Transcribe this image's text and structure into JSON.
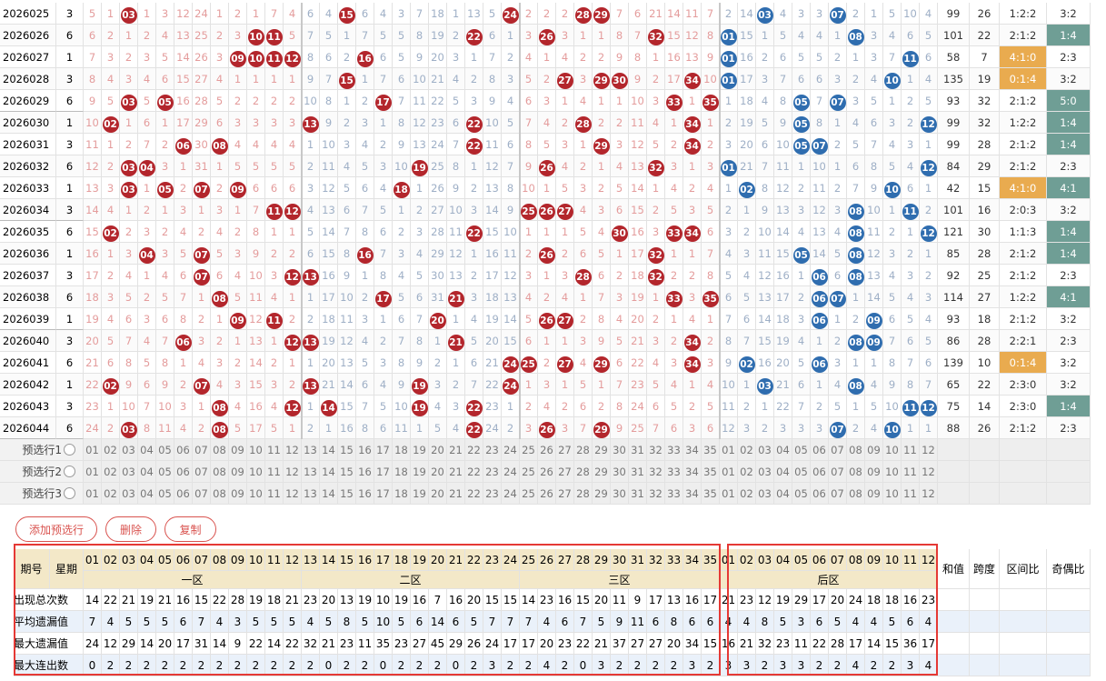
{
  "colors": {
    "front_ball": "#b3262c",
    "back_ball": "#2f6daf",
    "zone_ratio_mark": "#e9ab4f",
    "odd_even_mark": "#6f9e95"
  },
  "rows": [
    {
      "period": "2026025",
      "week": 3,
      "front": [
        5,
        1,
        "03",
        1,
        3,
        12,
        24,
        1,
        2,
        1,
        7,
        4,
        6,
        4,
        "15",
        6,
        4,
        3,
        7,
        18,
        1,
        13,
        5,
        "24",
        2,
        2,
        2,
        "28",
        "29",
        7,
        6,
        21,
        14,
        11,
        7
      ],
      "back": [
        2,
        14,
        "03",
        4,
        3,
        3,
        "07",
        2,
        1,
        5,
        10,
        4
      ],
      "sum": 99,
      "span": 26,
      "zone_ratio": "1:2:2",
      "odd_even": "3:2",
      "zone_ratio_marked": false,
      "odd_even_marked": false
    },
    {
      "period": "2026026",
      "week": 6,
      "front": [
        6,
        2,
        1,
        2,
        4,
        13,
        25,
        2,
        3,
        "10",
        "11",
        5,
        7,
        5,
        1,
        7,
        5,
        5,
        8,
        19,
        2,
        "22",
        6,
        1,
        3,
        "26",
        3,
        1,
        1,
        8,
        7,
        "32",
        15,
        12,
        8
      ],
      "back": [
        "01",
        15,
        1,
        5,
        4,
        4,
        1,
        "08",
        3,
        4,
        6,
        5
      ],
      "sum": 101,
      "span": 22,
      "zone_ratio": "2:1:2",
      "odd_even": "1:4",
      "zone_ratio_marked": false,
      "odd_even_marked": true
    },
    {
      "period": "2026027",
      "week": 1,
      "front": [
        7,
        3,
        2,
        3,
        5,
        14,
        26,
        3,
        "09",
        "10",
        "11",
        "12",
        8,
        6,
        2,
        "16",
        6,
        5,
        9,
        20,
        3,
        1,
        7,
        2,
        4,
        1,
        4,
        2,
        2,
        9,
        8,
        1,
        16,
        13,
        9
      ],
      "back": [
        "01",
        16,
        2,
        6,
        5,
        5,
        2,
        1,
        3,
        7,
        "11",
        6
      ],
      "sum": 58,
      "span": 7,
      "zone_ratio": "4:1:0",
      "odd_even": "2:3",
      "zone_ratio_marked": true,
      "odd_even_marked": false
    },
    {
      "period": "2026028",
      "week": 3,
      "front": [
        8,
        4,
        3,
        4,
        6,
        15,
        27,
        4,
        1,
        1,
        1,
        1,
        9,
        7,
        "15",
        1,
        7,
        6,
        10,
        21,
        4,
        2,
        8,
        3,
        5,
        2,
        "27",
        3,
        "29",
        "30",
        9,
        2,
        17,
        "34",
        10
      ],
      "back": [
        "01",
        17,
        3,
        7,
        6,
        6,
        3,
        2,
        4,
        "10",
        1,
        4
      ],
      "sum": 135,
      "span": 19,
      "zone_ratio": "0:1:4",
      "odd_even": "3:2",
      "zone_ratio_marked": true,
      "odd_even_marked": false
    },
    {
      "period": "2026029",
      "week": 6,
      "front": [
        9,
        5,
        "03",
        5,
        "05",
        16,
        28,
        5,
        2,
        2,
        2,
        2,
        10,
        8,
        1,
        2,
        "17",
        7,
        11,
        22,
        5,
        3,
        9,
        4,
        6,
        3,
        1,
        4,
        1,
        1,
        10,
        3,
        "33",
        1,
        "35"
      ],
      "back": [
        1,
        18,
        4,
        8,
        "05",
        7,
        "07",
        3,
        5,
        1,
        2,
        5
      ],
      "sum": 93,
      "span": 32,
      "zone_ratio": "2:1:2",
      "odd_even": "5:0",
      "zone_ratio_marked": false,
      "odd_even_marked": true
    },
    {
      "period": "2026030",
      "week": 1,
      "front": [
        10,
        "02",
        1,
        6,
        1,
        17,
        29,
        6,
        3,
        3,
        3,
        3,
        "13",
        9,
        2,
        3,
        1,
        8,
        12,
        23,
        6,
        "22",
        10,
        5,
        7,
        4,
        2,
        "28",
        2,
        2,
        11,
        4,
        1,
        "34",
        1
      ],
      "back": [
        2,
        19,
        5,
        9,
        "05",
        8,
        1,
        4,
        6,
        3,
        2,
        "12"
      ],
      "sum": 99,
      "span": 32,
      "zone_ratio": "1:2:2",
      "odd_even": "1:4",
      "zone_ratio_marked": false,
      "odd_even_marked": true
    },
    {
      "period": "2026031",
      "week": 3,
      "front": [
        11,
        1,
        2,
        7,
        2,
        "06",
        30,
        "08",
        4,
        4,
        4,
        4,
        1,
        10,
        3,
        4,
        2,
        9,
        13,
        24,
        7,
        "22",
        11,
        6,
        8,
        5,
        3,
        1,
        "29",
        3,
        12,
        5,
        2,
        "34",
        2
      ],
      "back": [
        3,
        20,
        6,
        10,
        "05",
        "07",
        2,
        5,
        7,
        4,
        3,
        1
      ],
      "sum": 99,
      "span": 28,
      "zone_ratio": "2:1:2",
      "odd_even": "1:4",
      "zone_ratio_marked": false,
      "odd_even_marked": true
    },
    {
      "period": "2026032",
      "week": 6,
      "front": [
        12,
        2,
        "03",
        "04",
        3,
        1,
        31,
        1,
        5,
        5,
        5,
        5,
        2,
        11,
        4,
        5,
        3,
        10,
        "19",
        25,
        8,
        1,
        12,
        7,
        9,
        "26",
        4,
        2,
        1,
        4,
        13,
        "32",
        3,
        1,
        3
      ],
      "back": [
        "01",
        21,
        7,
        11,
        1,
        10,
        1,
        6,
        8,
        5,
        4,
        "12"
      ],
      "sum": 84,
      "span": 29,
      "zone_ratio": "2:1:2",
      "odd_even": "2:3",
      "zone_ratio_marked": false,
      "odd_even_marked": false
    },
    {
      "period": "2026033",
      "week": 1,
      "front": [
        13,
        3,
        "03",
        1,
        "05",
        2,
        "07",
        2,
        "09",
        6,
        6,
        6,
        3,
        12,
        5,
        6,
        4,
        "18",
        1,
        26,
        9,
        2,
        13,
        8,
        10,
        1,
        5,
        3,
        2,
        5,
        14,
        1,
        4,
        2,
        4
      ],
      "back": [
        1,
        "02",
        8,
        12,
        2,
        11,
        2,
        7,
        9,
        "10",
        6,
        1
      ],
      "sum": 42,
      "span": 15,
      "zone_ratio": "4:1:0",
      "odd_even": "4:1",
      "zone_ratio_marked": true,
      "odd_even_marked": true
    },
    {
      "period": "2026034",
      "week": 3,
      "front": [
        14,
        4,
        1,
        2,
        1,
        3,
        1,
        3,
        1,
        7,
        "11",
        "12",
        4,
        13,
        6,
        7,
        5,
        1,
        2,
        27,
        10,
        3,
        14,
        9,
        "25",
        "26",
        "27",
        4,
        3,
        6,
        15,
        2,
        5,
        3,
        5
      ],
      "back": [
        2,
        1,
        9,
        13,
        3,
        12,
        3,
        "08",
        10,
        1,
        "11",
        2
      ],
      "sum": 101,
      "span": 16,
      "zone_ratio": "2:0:3",
      "odd_even": "3:2",
      "zone_ratio_marked": false,
      "odd_even_marked": false
    },
    {
      "period": "2026035",
      "week": 6,
      "front": [
        15,
        "02",
        2,
        3,
        2,
        4,
        2,
        4,
        2,
        8,
        1,
        1,
        5,
        14,
        7,
        8,
        6,
        2,
        3,
        28,
        11,
        "22",
        15,
        10,
        1,
        1,
        1,
        5,
        4,
        "30",
        16,
        3,
        "33",
        "34",
        6
      ],
      "back": [
        3,
        2,
        10,
        14,
        4,
        13,
        4,
        "08",
        11,
        2,
        1,
        "12"
      ],
      "sum": 121,
      "span": 30,
      "zone_ratio": "1:1:3",
      "odd_even": "1:4",
      "zone_ratio_marked": false,
      "odd_even_marked": true
    },
    {
      "period": "2026036",
      "week": 1,
      "front": [
        16,
        1,
        3,
        "04",
        3,
        5,
        "07",
        5,
        3,
        9,
        2,
        2,
        6,
        15,
        8,
        "16",
        7,
        3,
        4,
        29,
        12,
        1,
        16,
        11,
        2,
        "26",
        2,
        6,
        5,
        1,
        17,
        "32",
        1,
        1,
        7
      ],
      "back": [
        4,
        3,
        11,
        15,
        "05",
        14,
        5,
        "08",
        12,
        3,
        2,
        1
      ],
      "sum": 85,
      "span": 28,
      "zone_ratio": "2:1:2",
      "odd_even": "1:4",
      "zone_ratio_marked": false,
      "odd_even_marked": true
    },
    {
      "period": "2026037",
      "week": 3,
      "front": [
        17,
        2,
        4,
        1,
        4,
        6,
        "07",
        6,
        4,
        10,
        3,
        "12",
        "13",
        16,
        9,
        1,
        8,
        4,
        5,
        30,
        13,
        2,
        17,
        12,
        3,
        1,
        3,
        "28",
        6,
        2,
        18,
        "32",
        2,
        2,
        8
      ],
      "back": [
        5,
        4,
        12,
        16,
        1,
        "06",
        6,
        "08",
        13,
        4,
        3,
        2
      ],
      "sum": 92,
      "span": 25,
      "zone_ratio": "2:1:2",
      "odd_even": "2:3",
      "zone_ratio_marked": false,
      "odd_even_marked": false
    },
    {
      "period": "2026038",
      "week": 6,
      "front": [
        18,
        3,
        5,
        2,
        5,
        7,
        1,
        "08",
        5,
        11,
        4,
        1,
        1,
        17,
        10,
        2,
        "17",
        5,
        6,
        31,
        "21",
        3,
        18,
        13,
        4,
        2,
        4,
        1,
        7,
        3,
        19,
        1,
        "33",
        3,
        "35"
      ],
      "back": [
        6,
        5,
        13,
        17,
        2,
        "06",
        "07",
        1,
        14,
        5,
        4,
        3
      ],
      "sum": 114,
      "span": 27,
      "zone_ratio": "1:2:2",
      "odd_even": "4:1",
      "zone_ratio_marked": false,
      "odd_even_marked": true
    },
    {
      "period": "2026039",
      "week": 1,
      "front": [
        19,
        4,
        6,
        3,
        6,
        8,
        2,
        1,
        "09",
        12,
        "11",
        2,
        2,
        18,
        11,
        3,
        1,
        6,
        7,
        "20",
        1,
        4,
        19,
        14,
        5,
        "26",
        "27",
        2,
        8,
        4,
        20,
        2,
        1,
        4,
        1
      ],
      "back": [
        7,
        6,
        14,
        18,
        3,
        "06",
        1,
        2,
        "09",
        6,
        5,
        4
      ],
      "sum": 93,
      "span": 18,
      "zone_ratio": "2:1:2",
      "odd_even": "3:2",
      "zone_ratio_marked": false,
      "odd_even_marked": false
    },
    {
      "period": "2026040",
      "week": 3,
      "front": [
        20,
        5,
        7,
        4,
        7,
        "06",
        3,
        2,
        1,
        13,
        1,
        "12",
        "13",
        19,
        12,
        4,
        2,
        7,
        8,
        1,
        "21",
        5,
        20,
        15,
        6,
        1,
        1,
        3,
        9,
        5,
        21,
        3,
        2,
        "34",
        2
      ],
      "back": [
        8,
        7,
        15,
        19,
        4,
        1,
        2,
        "08",
        "09",
        7,
        6,
        5
      ],
      "sum": 86,
      "span": 28,
      "zone_ratio": "2:2:1",
      "odd_even": "2:3",
      "zone_ratio_marked": false,
      "odd_even_marked": false
    },
    {
      "period": "2026041",
      "week": 6,
      "front": [
        21,
        6,
        8,
        5,
        8,
        1,
        4,
        3,
        2,
        14,
        2,
        1,
        1,
        20,
        13,
        5,
        3,
        8,
        9,
        2,
        1,
        6,
        21,
        "24",
        "25",
        2,
        "27",
        4,
        "29",
        6,
        22,
        4,
        3,
        "34",
        3
      ],
      "back": [
        9,
        "02",
        16,
        20,
        5,
        "06",
        3,
        1,
        1,
        8,
        7,
        6
      ],
      "sum": 139,
      "span": 10,
      "zone_ratio": "0:1:4",
      "odd_even": "3:2",
      "zone_ratio_marked": true,
      "odd_even_marked": false
    },
    {
      "period": "2026042",
      "week": 1,
      "front": [
        22,
        "02",
        9,
        6,
        9,
        2,
        "07",
        4,
        3,
        15,
        3,
        2,
        "13",
        21,
        14,
        6,
        4,
        9,
        "19",
        3,
        2,
        7,
        22,
        "24",
        1,
        3,
        1,
        5,
        1,
        7,
        23,
        5,
        4,
        1,
        4
      ],
      "back": [
        10,
        1,
        "03",
        21,
        6,
        1,
        4,
        "08",
        4,
        9,
        8,
        7
      ],
      "sum": 65,
      "span": 22,
      "zone_ratio": "2:3:0",
      "odd_even": "3:2",
      "zone_ratio_marked": false,
      "odd_even_marked": false
    },
    {
      "period": "2026043",
      "week": 3,
      "front": [
        23,
        1,
        10,
        7,
        10,
        3,
        1,
        "08",
        4,
        16,
        4,
        "12",
        1,
        "14",
        15,
        7,
        5,
        10,
        "19",
        4,
        3,
        "22",
        23,
        1,
        2,
        4,
        2,
        6,
        2,
        8,
        24,
        6,
        5,
        2,
        5
      ],
      "back": [
        11,
        2,
        1,
        22,
        7,
        2,
        5,
        1,
        5,
        10,
        "11",
        "12"
      ],
      "sum": 75,
      "span": 14,
      "zone_ratio": "2:3:0",
      "odd_even": "1:4",
      "zone_ratio_marked": false,
      "odd_even_marked": true
    },
    {
      "period": "2026044",
      "week": 6,
      "front": [
        24,
        2,
        "03",
        8,
        11,
        4,
        2,
        "08",
        5,
        17,
        5,
        1,
        2,
        1,
        16,
        8,
        6,
        11,
        1,
        5,
        4,
        "22",
        24,
        2,
        3,
        "26",
        3,
        7,
        "29",
        9,
        25,
        7,
        6,
        3,
        6
      ],
      "back": [
        12,
        3,
        2,
        3,
        3,
        3,
        "07",
        2,
        4,
        "10",
        1,
        1
      ],
      "sum": 88,
      "span": 26,
      "zone_ratio": "2:1:2",
      "odd_even": "2:3",
      "zone_ratio_marked": false,
      "odd_even_marked": false
    }
  ],
  "preselect": [
    "预选行1",
    "预选行2",
    "预选行3"
  ],
  "buttons": [
    "添加预选行",
    "删除",
    "复制"
  ],
  "header": {
    "period": "期号",
    "week": "星期",
    "front_numbers": [
      "01",
      "02",
      "03",
      "04",
      "05",
      "06",
      "07",
      "08",
      "09",
      "10",
      "11",
      "12",
      "13",
      "14",
      "15",
      "16",
      "17",
      "18",
      "19",
      "20",
      "21",
      "22",
      "23",
      "24",
      "25",
      "26",
      "27",
      "28",
      "29",
      "30",
      "31",
      "32",
      "33",
      "34",
      "35"
    ],
    "back_numbers": [
      "01",
      "02",
      "03",
      "04",
      "05",
      "06",
      "07",
      "08",
      "09",
      "10",
      "11",
      "12"
    ],
    "zones": [
      "一区",
      "二区",
      "三区"
    ],
    "back_zone": "后区",
    "sum": "和值",
    "span": "跨度",
    "zone_ratio": "区间比",
    "odd_even": "奇偶比"
  },
  "stats": [
    {
      "label": "出现总次数",
      "front": [
        14,
        22,
        21,
        19,
        21,
        16,
        15,
        22,
        28,
        19,
        18,
        21,
        23,
        20,
        13,
        19,
        10,
        19,
        16,
        7,
        16,
        20,
        15,
        15,
        14,
        23,
        16,
        15,
        20,
        11,
        9,
        17,
        13,
        16,
        17
      ],
      "back": [
        21,
        23,
        12,
        19,
        29,
        17,
        20,
        24,
        18,
        18,
        16,
        23
      ]
    },
    {
      "label": "平均遗漏值",
      "front": [
        7,
        4,
        5,
        5,
        5,
        6,
        7,
        4,
        3,
        5,
        5,
        5,
        4,
        5,
        8,
        5,
        10,
        5,
        6,
        14,
        6,
        5,
        7,
        7,
        7,
        4,
        6,
        7,
        5,
        9,
        11,
        6,
        8,
        6,
        6
      ],
      "back": [
        4,
        4,
        8,
        5,
        3,
        6,
        5,
        4,
        4,
        5,
        6,
        4
      ]
    },
    {
      "label": "最大遗漏值",
      "front": [
        24,
        12,
        29,
        14,
        20,
        17,
        31,
        14,
        9,
        22,
        14,
        22,
        32,
        21,
        23,
        11,
        35,
        23,
        27,
        45,
        29,
        26,
        24,
        17,
        17,
        20,
        23,
        22,
        21,
        37,
        27,
        27,
        20,
        34,
        15
      ],
      "back": [
        16,
        21,
        32,
        23,
        11,
        22,
        28,
        17,
        14,
        15,
        36,
        17
      ]
    },
    {
      "label": "最大连出数",
      "front": [
        0,
        2,
        2,
        2,
        2,
        2,
        2,
        2,
        2,
        2,
        2,
        2,
        2,
        0,
        2,
        2,
        0,
        2,
        2,
        2,
        0,
        2,
        3,
        2,
        2,
        4,
        2,
        0,
        3,
        2,
        2,
        2,
        2,
        3,
        2
      ],
      "back": [
        3,
        3,
        2,
        3,
        3,
        2,
        2,
        4,
        2,
        2,
        3,
        4
      ]
    }
  ]
}
